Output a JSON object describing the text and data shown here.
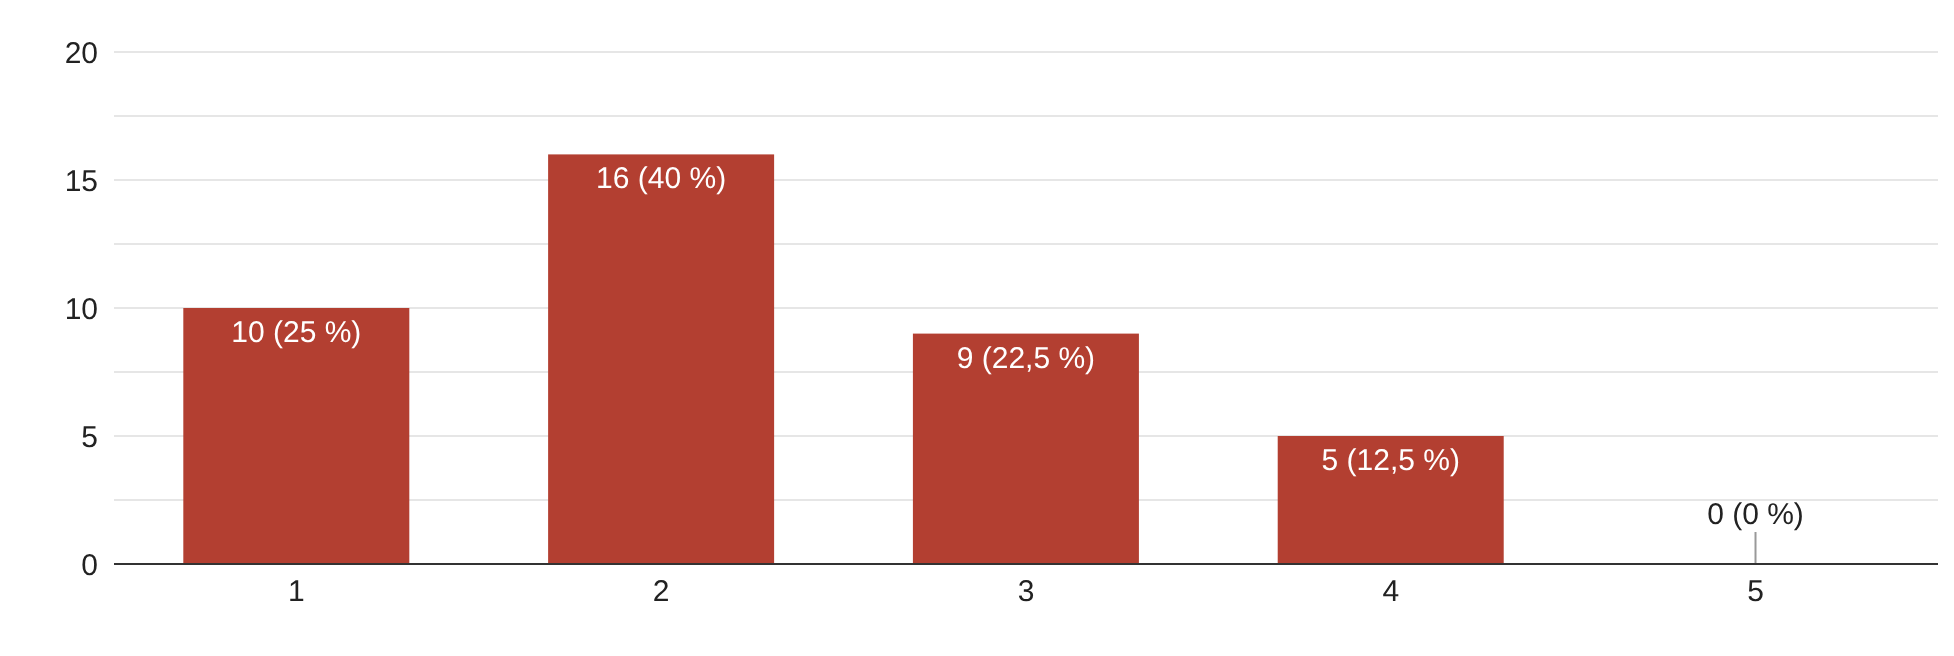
{
  "chart_data": {
    "type": "bar",
    "categories": [
      "1",
      "2",
      "3",
      "4",
      "5"
    ],
    "values": [
      10,
      16,
      9,
      5,
      0
    ],
    "value_labels": [
      "10 (25 %)",
      "16 (40 %)",
      "9 (22,5 %)",
      "5 (12,5 %)",
      "0 (0 %)"
    ],
    "color": "#b33f31",
    "ylim": [
      0,
      20
    ],
    "yticks": [
      0,
      {
        "value": 2.5,
        "label": null
      },
      5,
      {
        "value": 7.5,
        "label": null
      },
      10,
      {
        "value": 12.5,
        "label": null
      },
      15,
      {
        "value": 17.5,
        "label": null
      },
      20
    ],
    "grid": "y",
    "legend": false
  }
}
